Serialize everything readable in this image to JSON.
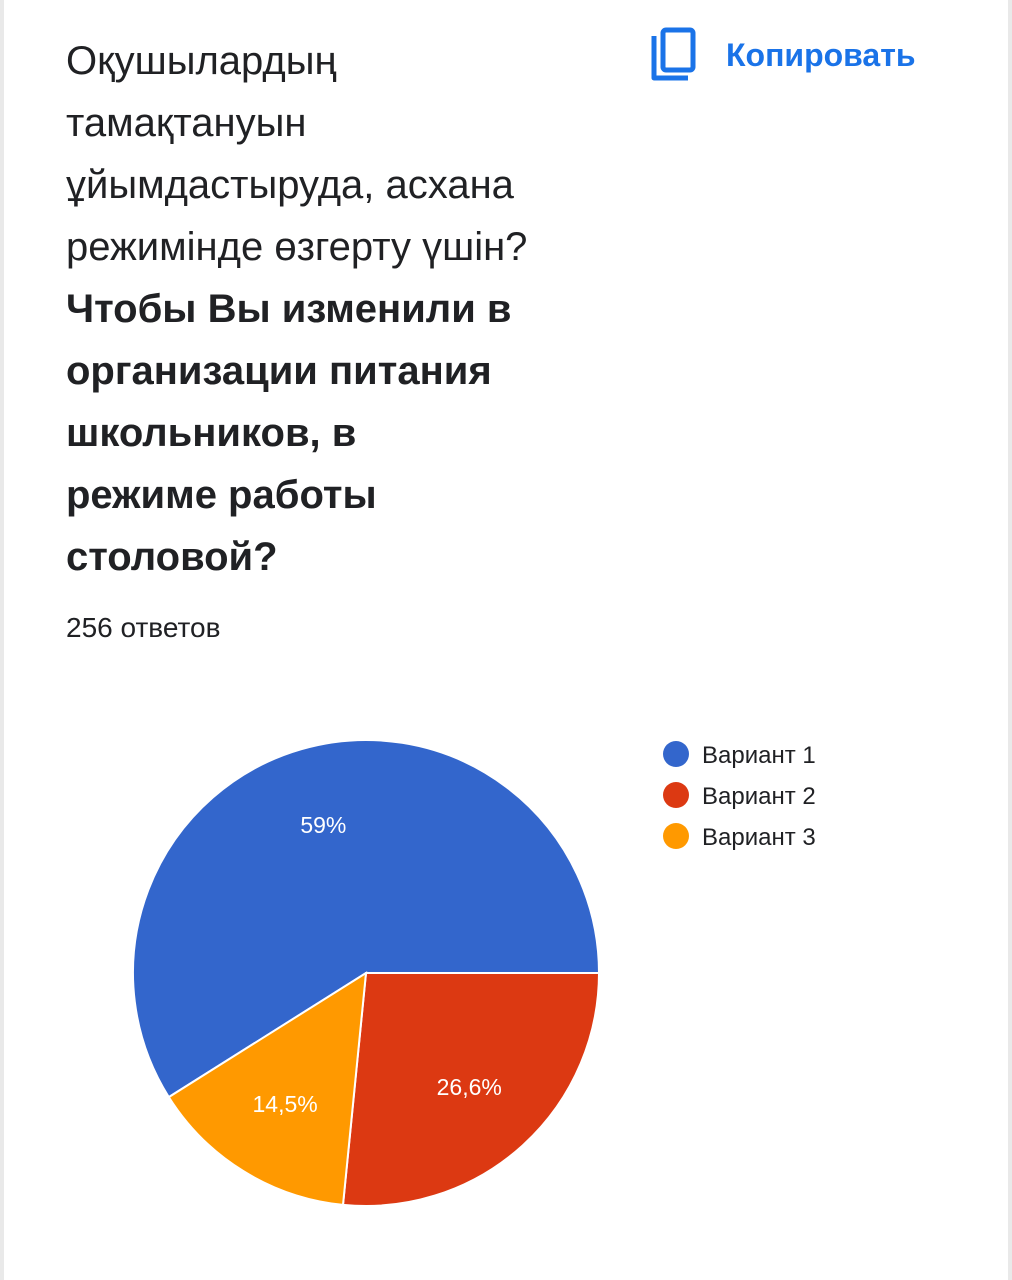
{
  "question": {
    "kk_lines": [
      "Оқушылардың",
      "тамақтануын",
      "ұйымдастыруда, асхана",
      "режимінде өзгерту үшін?"
    ],
    "ru_lines": [
      "Чтобы Вы изменили в",
      "организации питания",
      "школьников, в",
      "режиме работы",
      "столовой?"
    ]
  },
  "copy_button": {
    "label": "Копировать",
    "icon": "copy-icon"
  },
  "responses_text": "256 ответов",
  "colors": {
    "accent": "#1a73e8",
    "series": [
      "#3366cc",
      "#dc3912",
      "#ff9900"
    ]
  },
  "chart_data": {
    "type": "pie",
    "categories": [
      "Вариант 1",
      "Вариант 2",
      "Вариант 3"
    ],
    "values": [
      59,
      26.6,
      14.5
    ],
    "data_labels": [
      "59%",
      "26,6%",
      "14,5%"
    ],
    "legend_position": "right"
  }
}
